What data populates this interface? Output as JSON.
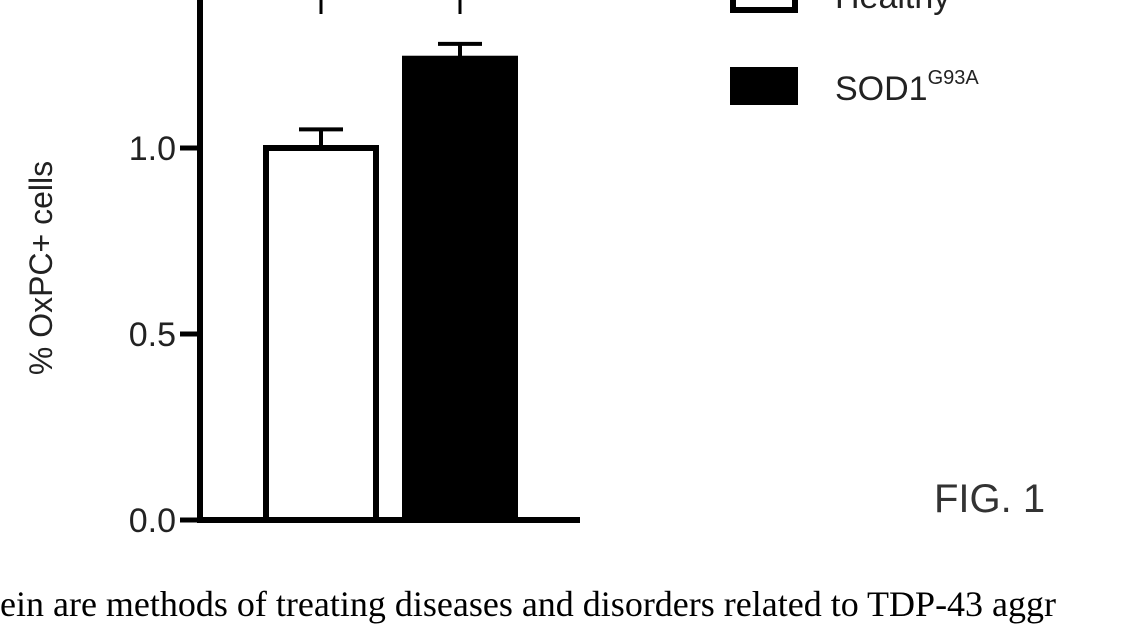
{
  "chart_data": {
    "type": "bar",
    "categories": [
      "Healthy",
      "SOD1G93A"
    ],
    "values": [
      1.0,
      1.24
    ],
    "errors": [
      0.05,
      0.04
    ],
    "ylabel": "% OxPC+ cells",
    "ylim": [
      0,
      1.5
    ],
    "yticks": [
      {
        "value": 0.0,
        "label": "0.0"
      },
      {
        "value": 0.5,
        "label": "0.5"
      },
      {
        "value": 1.0,
        "label": "1.0"
      }
    ],
    "series": [
      {
        "name": "Healthy",
        "fill": "#ffffff"
      },
      {
        "name": "SOD1",
        "sup": "G93A",
        "fill": "#000000"
      }
    ],
    "legend_position": "top-right",
    "grid": false
  },
  "figure_label": "FIG. 1",
  "body_text": "ein are methods of treating diseases and disorders related to TDP-43 aggr"
}
